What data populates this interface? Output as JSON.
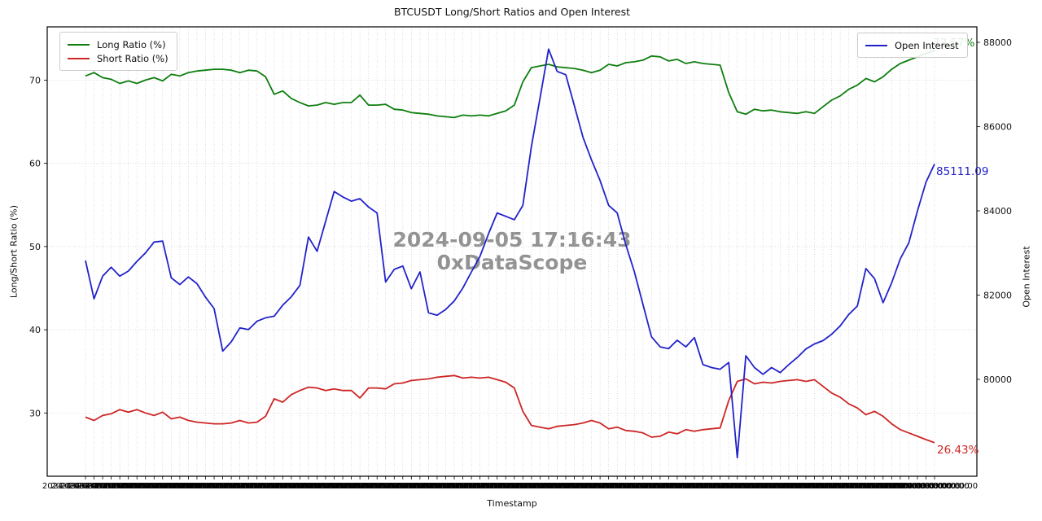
{
  "title": "BTCUSDT Long/Short Ratios and Open Interest",
  "watermark": {
    "line1": "2024-09-05 17:16:43",
    "line2": "0xDataScope"
  },
  "legend_left": [
    {
      "label": "Long Ratio (%)",
      "color": "#0f7e0f"
    },
    {
      "label": "Short Ratio (%)",
      "color": "#cd2626"
    }
  ],
  "legend_right": [
    {
      "label": "Open Interest",
      "color": "#2222cb"
    }
  ],
  "annotations": {
    "long_last": {
      "text": "73.57%",
      "color": "#0f7e0f"
    },
    "short_last": {
      "text": "26.43%",
      "color": "#cd2626"
    },
    "oi_last": {
      "text": "85111.09",
      "color": "#2222cb"
    }
  },
  "axes": {
    "y_left_label": "Long/Short Ratio (%)",
    "y_right_label": "Open Interest",
    "x_label": "Timestamp",
    "y_left_ticks": [
      "30",
      "40",
      "50",
      "60",
      "70"
    ],
    "y_left_tick_values": [
      30,
      40,
      50,
      60,
      70
    ],
    "y_right_ticks": [
      "80000",
      "82000",
      "84000",
      "86000",
      "88000"
    ],
    "y_right_tick_values": [
      80000,
      82000,
      84000,
      86000,
      88000
    ],
    "x_ticks_overlapping_illegible": true,
    "x_tick_pattern": "2024-09-03 00:00:00"
  },
  "chart_data": {
    "type": "line",
    "x_description": "~100 hourly timestamps (tick labels overlap into an illegible band)",
    "x_count": 100,
    "y_left_axis": {
      "label": "Long/Short Ratio (%)",
      "min": 22.4,
      "max": 76.4,
      "ticks": [
        30,
        40,
        50,
        60,
        70
      ]
    },
    "y_right_axis": {
      "label": "Open Interest",
      "min": 77700,
      "max": 88367,
      "ticks": [
        80000,
        82000,
        84000,
        86000,
        88000
      ]
    },
    "grid": true,
    "legend_positions": [
      "upper left",
      "upper right"
    ],
    "series": [
      {
        "name": "Long Ratio (%)",
        "axis": "left",
        "color": "#0f7e0f",
        "last_value": 73.57,
        "values": [
          70.5,
          70.9,
          70.3,
          70.1,
          69.6,
          69.9,
          69.6,
          70.0,
          70.3,
          69.9,
          70.7,
          70.5,
          70.9,
          71.1,
          71.2,
          71.3,
          71.3,
          71.2,
          70.9,
          71.2,
          71.1,
          70.4,
          68.3,
          68.7,
          67.8,
          67.3,
          66.9,
          67.0,
          67.3,
          67.1,
          67.3,
          67.3,
          68.2,
          67.0,
          67.0,
          67.1,
          66.5,
          66.4,
          66.1,
          66.0,
          65.9,
          65.7,
          65.6,
          65.5,
          65.8,
          65.7,
          65.8,
          65.7,
          66.0,
          66.3,
          67.0,
          69.8,
          71.5,
          71.7,
          71.9,
          71.6,
          71.5,
          71.4,
          71.2,
          70.9,
          71.2,
          71.9,
          71.7,
          72.1,
          72.2,
          72.4,
          72.9,
          72.8,
          72.3,
          72.5,
          72.0,
          72.2,
          72.0,
          71.9,
          71.8,
          68.5,
          66.2,
          65.9,
          66.5,
          66.3,
          66.4,
          66.2,
          66.1,
          66.0,
          66.2,
          66.0,
          66.8,
          67.6,
          68.1,
          68.9,
          69.4,
          70.2,
          69.8,
          70.4,
          71.3,
          72.0,
          72.4,
          72.8,
          73.2,
          73.57
        ]
      },
      {
        "name": "Short Ratio (%)",
        "axis": "left",
        "color": "#cd2626",
        "last_value": 26.43,
        "values": [
          29.5,
          29.1,
          29.7,
          29.9,
          30.4,
          30.1,
          30.4,
          30.0,
          29.7,
          30.1,
          29.3,
          29.5,
          29.1,
          28.9,
          28.8,
          28.7,
          28.7,
          28.8,
          29.1,
          28.8,
          28.9,
          29.6,
          31.7,
          31.3,
          32.2,
          32.7,
          33.1,
          33.0,
          32.7,
          32.9,
          32.7,
          32.7,
          31.8,
          33.0,
          33.0,
          32.9,
          33.5,
          33.6,
          33.9,
          34.0,
          34.1,
          34.3,
          34.4,
          34.5,
          34.2,
          34.3,
          34.2,
          34.3,
          34.0,
          33.7,
          33.0,
          30.2,
          28.5,
          28.3,
          28.1,
          28.4,
          28.5,
          28.6,
          28.8,
          29.1,
          28.8,
          28.1,
          28.3,
          27.9,
          27.8,
          27.6,
          27.1,
          27.2,
          27.7,
          27.5,
          28.0,
          27.8,
          28.0,
          28.1,
          28.2,
          31.5,
          33.8,
          34.1,
          33.5,
          33.7,
          33.6,
          33.8,
          33.9,
          34.0,
          33.8,
          34.0,
          33.2,
          32.4,
          31.9,
          31.1,
          30.6,
          29.8,
          30.2,
          29.6,
          28.7,
          28.0,
          27.6,
          27.2,
          26.8,
          26.43
        ]
      },
      {
        "name": "Open Interest",
        "axis": "right",
        "color": "#2222cb",
        "last_value": 85111.09,
        "values": [
          82820,
          81910,
          82450,
          82660,
          82450,
          82570,
          82800,
          83000,
          83260,
          83280,
          82410,
          82250,
          82430,
          82270,
          81950,
          81680,
          80670,
          80890,
          81220,
          81180,
          81380,
          81460,
          81500,
          81760,
          81960,
          82230,
          83380,
          83040,
          83750,
          84460,
          84330,
          84230,
          84290,
          84090,
          83950,
          82310,
          82610,
          82690,
          82150,
          82550,
          81580,
          81520,
          81660,
          81860,
          82170,
          82550,
          82920,
          83460,
          83950,
          83870,
          83790,
          84130,
          85530,
          86680,
          87840,
          87310,
          87230,
          86500,
          85750,
          85210,
          84720,
          84130,
          83950,
          83200,
          82550,
          81780,
          81010,
          80770,
          80730,
          80930,
          80770,
          80990,
          80350,
          80280,
          80240,
          80400,
          78140,
          80560,
          80280,
          80120,
          80280,
          80160,
          80350,
          80520,
          80720,
          80840,
          80920,
          81070,
          81270,
          81540,
          81740,
          82630,
          82390,
          81820,
          82290,
          82860,
          83240,
          83990,
          84680,
          85111.09
        ]
      }
    ],
    "title": "BTCUSDT Long/Short Ratios and Open Interest",
    "xlabel": "Timestamp",
    "annotations_on_last_points": [
      "73.57%",
      "26.43%",
      "85111.09"
    ]
  }
}
